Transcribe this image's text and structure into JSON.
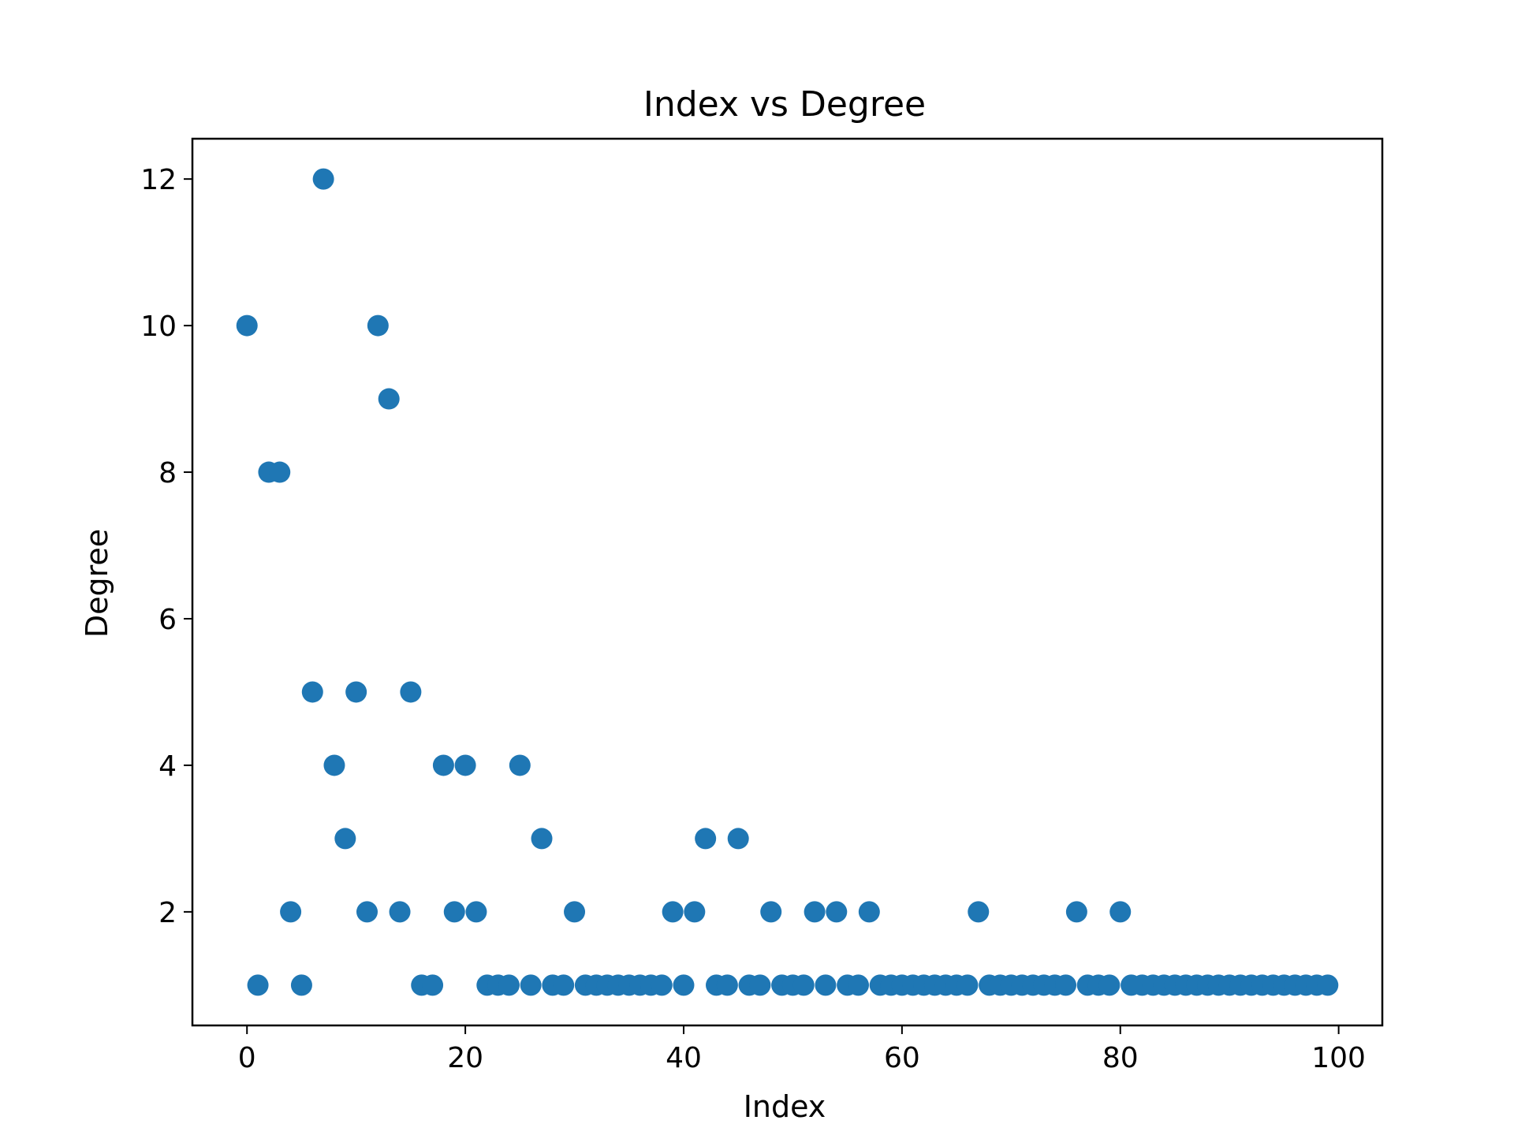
{
  "chart_data": {
    "type": "scatter",
    "title": "Index vs Degree",
    "xlabel": "Index",
    "ylabel": "Degree",
    "xlim": [
      -5,
      104
    ],
    "ylim": [
      0.45,
      12.55
    ],
    "xticks": [
      0,
      20,
      40,
      60,
      80,
      100
    ],
    "yticks": [
      2,
      4,
      6,
      8,
      10,
      12
    ],
    "grid": false,
    "legend": "none",
    "marker_color": "#1f77b4",
    "series": [
      {
        "x": [
          0,
          1,
          2,
          3,
          4,
          5,
          6,
          7,
          8,
          9,
          10,
          11,
          12,
          13,
          14,
          15,
          16,
          17,
          18,
          19,
          20,
          21,
          22,
          23,
          24,
          25,
          26,
          27,
          28,
          29,
          30,
          31,
          32,
          33,
          34,
          35,
          36,
          37,
          38,
          39,
          40,
          41,
          42,
          43,
          44,
          45,
          46,
          47,
          48,
          49,
          50,
          51,
          52,
          53,
          54,
          55,
          56,
          57,
          58,
          59,
          60,
          61,
          62,
          63,
          64,
          65,
          66,
          67,
          68,
          69,
          70,
          71,
          72,
          73,
          74,
          75,
          76,
          77,
          78,
          79,
          80,
          81,
          82,
          83,
          84,
          85,
          86,
          87,
          88,
          89,
          90,
          91,
          92,
          93,
          94,
          95,
          96,
          97,
          98,
          99
        ],
        "y": [
          10,
          1,
          8,
          8,
          2,
          1,
          5,
          12,
          4,
          3,
          5,
          2,
          10,
          9,
          2,
          5,
          1,
          1,
          4,
          2,
          4,
          2,
          1,
          1,
          1,
          4,
          1,
          3,
          1,
          1,
          2,
          1,
          1,
          1,
          1,
          1,
          1,
          1,
          1,
          2,
          1,
          2,
          3,
          1,
          1,
          3,
          1,
          1,
          2,
          1,
          1,
          1,
          2,
          1,
          2,
          1,
          1,
          2,
          1,
          1,
          1,
          1,
          1,
          1,
          1,
          1,
          1,
          2,
          1,
          1,
          1,
          1,
          1,
          1,
          1,
          1,
          2,
          1,
          1,
          1,
          2,
          1,
          1,
          1,
          1,
          1,
          1,
          1,
          1,
          1,
          1,
          1,
          1,
          1,
          1,
          1,
          1,
          1,
          1,
          1
        ]
      }
    ]
  }
}
